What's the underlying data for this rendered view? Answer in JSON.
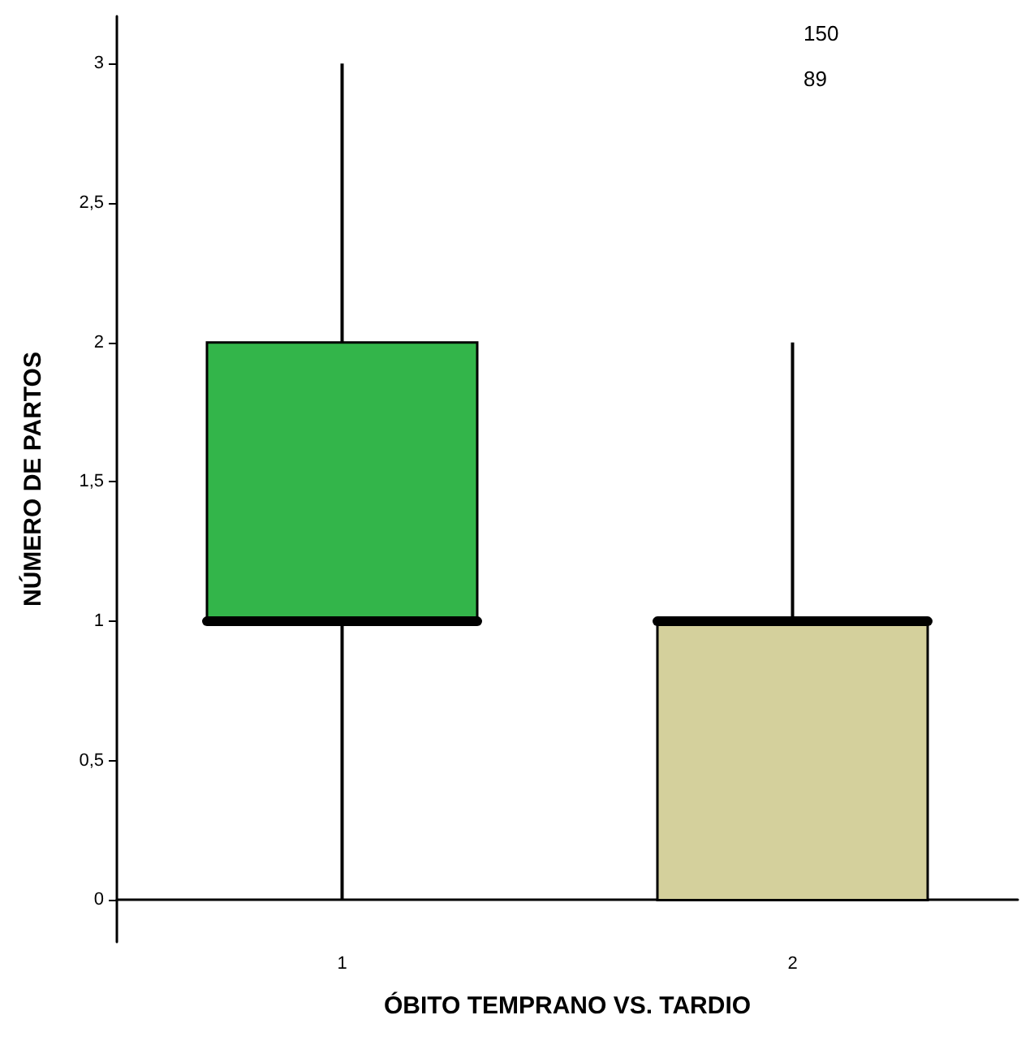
{
  "chart_data": {
    "type": "box",
    "xlabel": "ÓBITO TEMPRANO VS. TARDIO",
    "ylabel": "NÚMERO DE PARTOS",
    "categories": [
      "1",
      "2"
    ],
    "boxes": [
      {
        "low": 0,
        "q1": 1,
        "median": 1,
        "q3": 2,
        "high": 3
      },
      {
        "low": 0,
        "q1": 0,
        "median": 1,
        "q3": 1,
        "high": 2
      }
    ],
    "colors": [
      "#33b54a",
      "#d4d09c"
    ],
    "ylim": [
      -0.15,
      3.17
    ],
    "yticks": [
      0,
      {
        "value": 0.5,
        "label": "0,5"
      },
      1,
      {
        "value": 1.5,
        "label": "1,5"
      },
      2,
      {
        "value": 2.5,
        "label": "2,5"
      },
      3
    ],
    "annotations": [
      "150",
      "89"
    ]
  }
}
